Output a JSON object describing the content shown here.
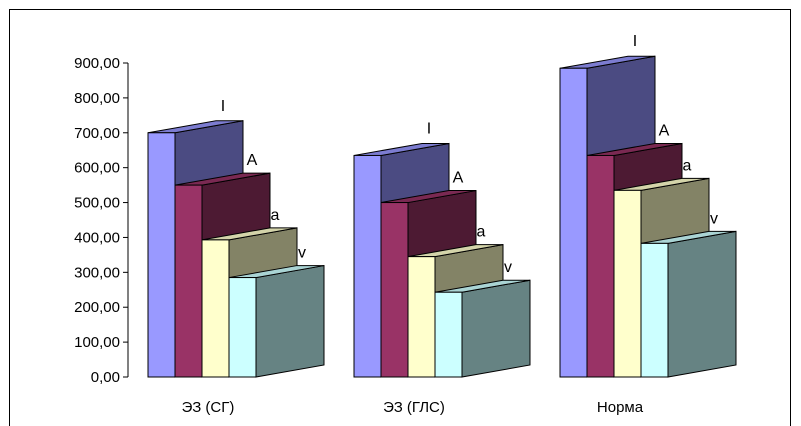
{
  "chart_data": {
    "type": "bar",
    "categories": [
      "ЭЗ (СГ)",
      "ЭЗ (ГЛС)",
      "Норма"
    ],
    "series": [
      {
        "name": "I",
        "values": [
          700,
          635,
          885
        ]
      },
      {
        "name": "A",
        "values": [
          550,
          500,
          635
        ]
      },
      {
        "name": "a",
        "values": [
          393,
          345,
          535
        ]
      },
      {
        "name": "v",
        "values": [
          285,
          243,
          383
        ]
      }
    ],
    "y_ticks": [
      "0,00",
      "100,00",
      "200,00",
      "300,00",
      "400,00",
      "500,00",
      "600,00",
      "700,00",
      "800,00",
      "900,00"
    ],
    "ylim": [
      0,
      900
    ],
    "grid": false,
    "legend": "none",
    "colors": {
      "I": {
        "front": "#9999ff",
        "side": "#4b4b82",
        "top": "#7c7cd0"
      },
      "A": {
        "front": "#993366",
        "side": "#4d1a33",
        "top": "#7a2952"
      },
      "a": {
        "front": "#ffffcc",
        "side": "#838366",
        "top": "#d4d4aa"
      },
      "v": {
        "front": "#ccffff",
        "side": "#668383",
        "top": "#aad4d4"
      }
    }
  }
}
